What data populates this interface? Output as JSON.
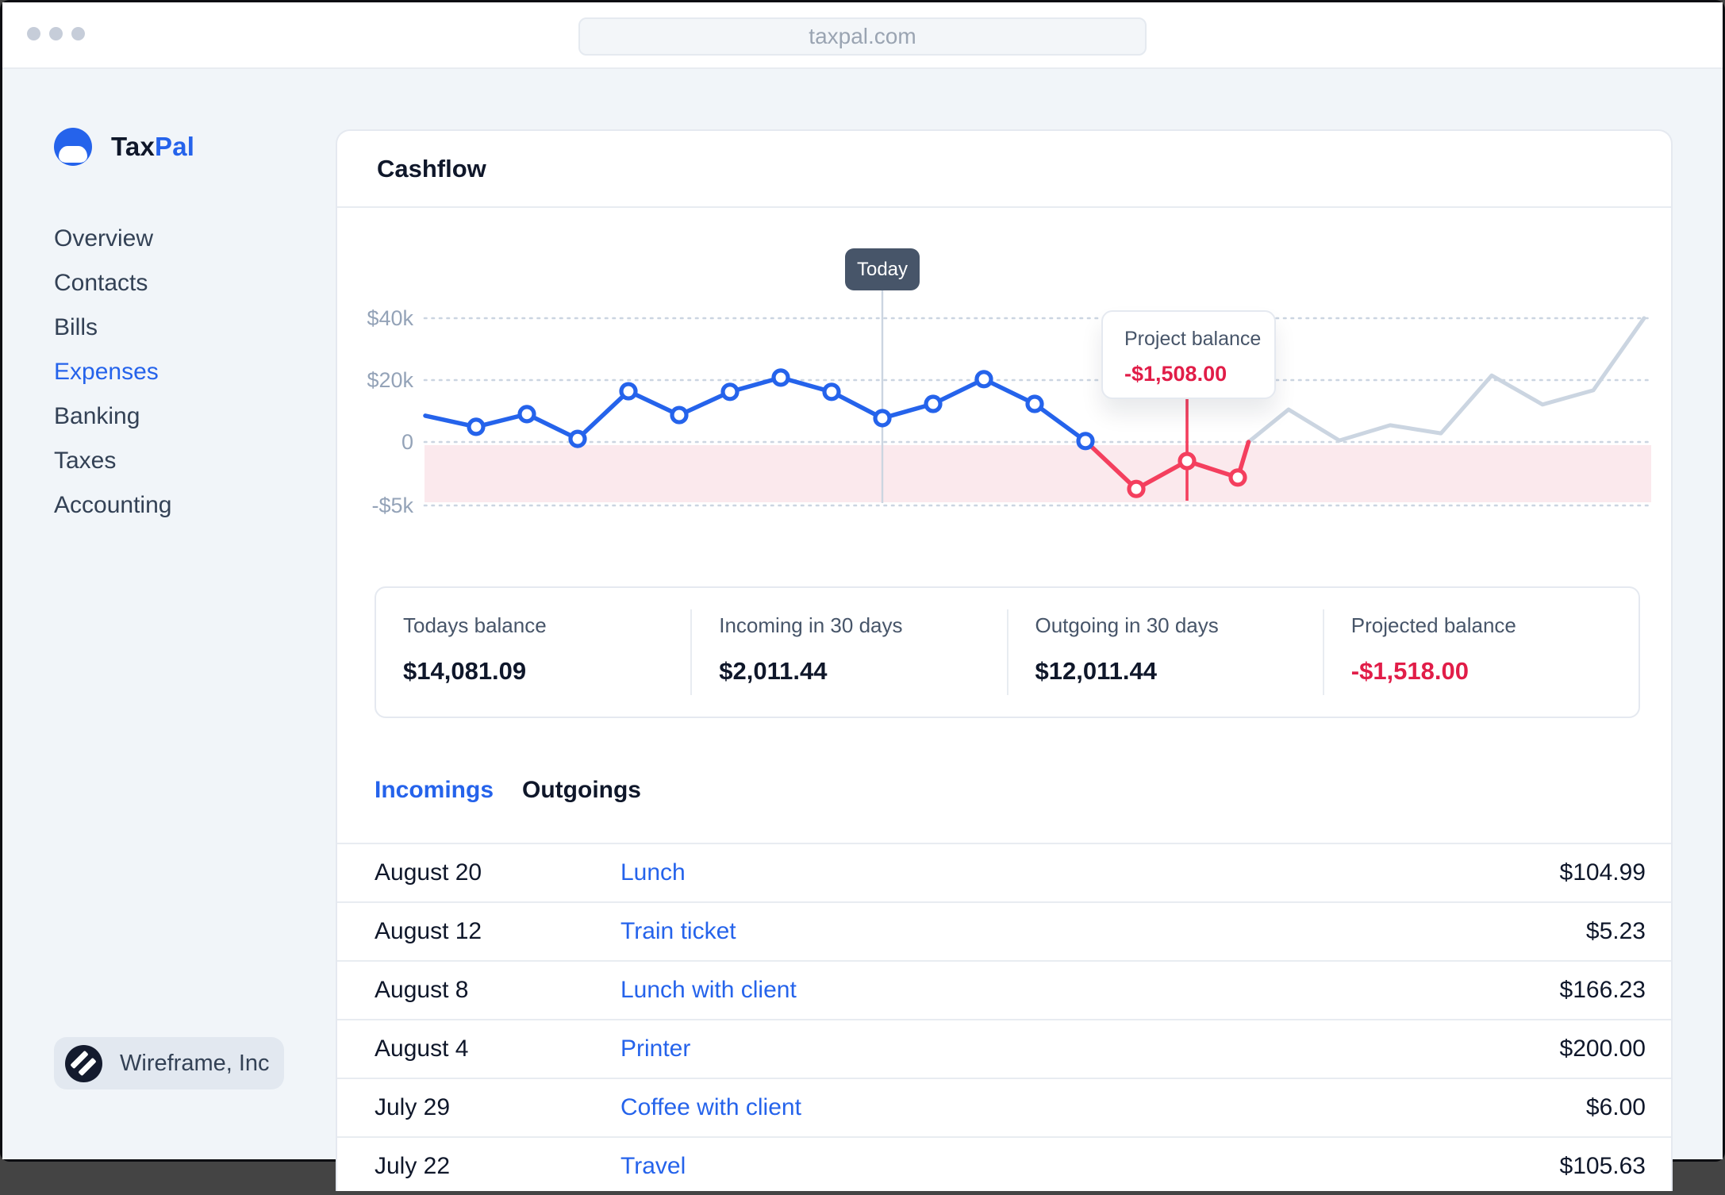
{
  "browser": {
    "url": "taxpal.com"
  },
  "brand": {
    "name_primary": "Tax",
    "name_secondary": "Pal"
  },
  "sidebar": {
    "items": [
      {
        "label": "Overview",
        "active": false
      },
      {
        "label": "Contacts",
        "active": false
      },
      {
        "label": "Bills",
        "active": false
      },
      {
        "label": "Expenses",
        "active": true
      },
      {
        "label": "Banking",
        "active": false
      },
      {
        "label": "Taxes",
        "active": false
      },
      {
        "label": "Accounting",
        "active": false
      }
    ],
    "org": "Wireframe, Inc"
  },
  "panel": {
    "title": "Cashflow"
  },
  "chart_data": {
    "type": "line",
    "title": "Cashflow",
    "ylabel": "",
    "xlabel": "",
    "grid": "dotted horizontal",
    "legend": "none",
    "y_ticks": [
      {
        "label": "$40k",
        "value_k": 40
      },
      {
        "label": "$20k",
        "value_k": 20
      },
      {
        "label": "0",
        "value_k": 0
      },
      {
        "label": "-$5k",
        "value_k": -5
      }
    ],
    "ylim_note": "non-linear axis: ticks $40k, $20k, 0, -$5k are evenly spaced",
    "today_marker": {
      "label": "Today",
      "index": 9
    },
    "tooltip": {
      "label": "Project balance",
      "value": "-$1,508.00",
      "index": 15
    },
    "negative_band": {
      "from_k": 0,
      "to_k": -5,
      "color": "#FBE9ED"
    },
    "series": [
      {
        "name": "actual",
        "color": "#2563EB",
        "start_index": 0,
        "markers": true,
        "values_k": [
          8.5,
          4.9,
          9.0,
          1.0,
          16.4,
          8.7,
          16.2,
          20.8,
          16.2,
          7.7,
          12.3,
          20.3,
          12.3,
          0.3
        ]
      },
      {
        "name": "overdraft",
        "color": "#F43F5E",
        "start_index": 14,
        "markers": true,
        "values_k": [
          -3.7,
          -1.5,
          -2.8
        ]
      },
      {
        "name": "projected",
        "color": "#CBD5E1",
        "start_index": 17,
        "markers": false,
        "values_k": [
          10.5,
          0.5,
          5.4,
          2.8,
          21.5,
          12.1,
          16.7,
          40.0
        ]
      }
    ]
  },
  "stats": [
    {
      "label": "Todays balance",
      "value": "$14,081.09",
      "negative": false
    },
    {
      "label": "Incoming in 30 days",
      "value": "$2,011.44",
      "negative": false
    },
    {
      "label": "Outgoing in 30 days",
      "value": "$12,011.44",
      "negative": false
    },
    {
      "label": "Projected balance",
      "value": "-$1,518.00",
      "negative": true
    }
  ],
  "tabs": [
    {
      "label": "Incomings",
      "active": true
    },
    {
      "label": "Outgoings",
      "active": false
    }
  ],
  "transactions": {
    "rows": [
      {
        "date": "August 20",
        "description": "Lunch",
        "amount": "$104.99"
      },
      {
        "date": "August 12",
        "description": "Train ticket",
        "amount": "$5.23"
      },
      {
        "date": "August 8",
        "description": "Lunch with client",
        "amount": "$166.23"
      },
      {
        "date": "August 4",
        "description": "Printer",
        "amount": "$200.00"
      },
      {
        "date": "July 29",
        "description": "Coffee with client",
        "amount": "$6.00"
      },
      {
        "date": "July 22",
        "description": "Travel",
        "amount": "$105.63"
      }
    ]
  }
}
